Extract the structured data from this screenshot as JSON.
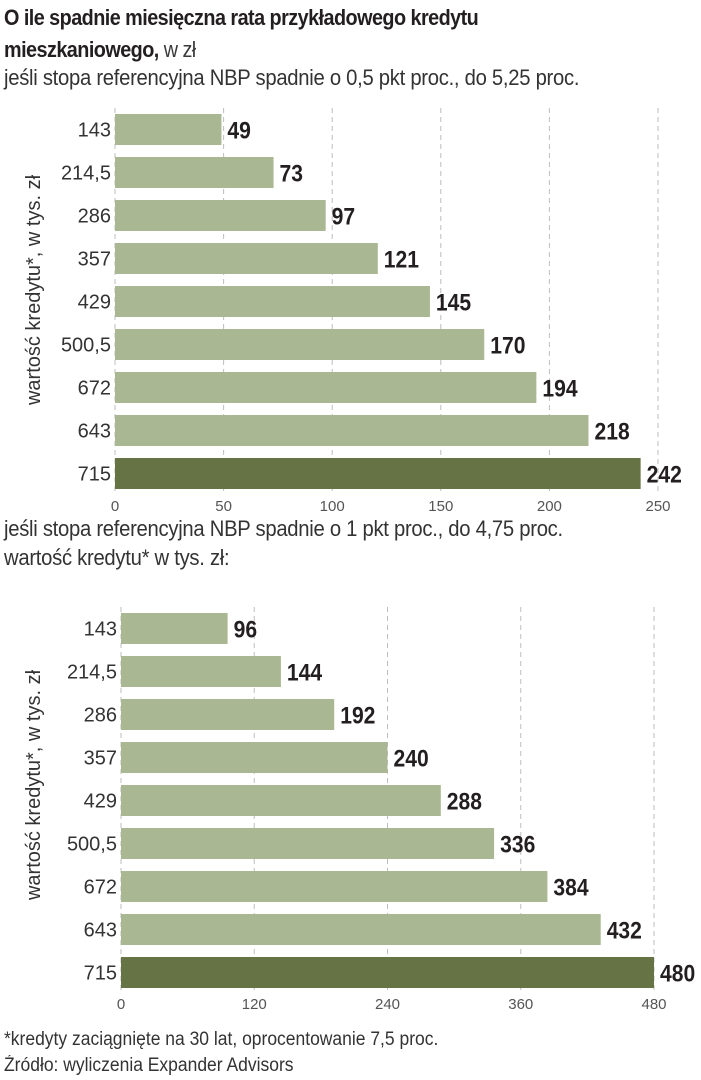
{
  "header": {
    "title_bold": "O ile spadnie miesięczna rata przykładowego kredytu mieszkaniowego,",
    "title_unit": " w zł"
  },
  "colors": {
    "bar_light": "#a9b792",
    "bar_dark": "#667445",
    "label": "#231f20",
    "grid": "#bdbdbd",
    "tick": "#555555"
  },
  "chart_data": [
    {
      "type": "bar",
      "orientation": "horizontal",
      "subtitle": "jeśli stopa referencyjna NBP spadnie o 0,5 pkt proc., do 5,25 proc.",
      "ylabel": "wartość kredytu*, w tys. zł",
      "xlabel": "",
      "categories": [
        "143",
        "214,5",
        "286",
        "357",
        "429",
        "500,5",
        "672",
        "643",
        "715"
      ],
      "values": [
        49,
        73,
        97,
        121,
        145,
        170,
        194,
        218,
        242
      ],
      "highlight_index": 8,
      "xlim": [
        0,
        250
      ],
      "xticks": [
        0,
        50,
        100,
        150,
        200,
        250
      ],
      "grid": true
    },
    {
      "type": "bar",
      "orientation": "horizontal",
      "subtitle": "jeśli stopa referencyjna NBP spadnie o 1 pkt proc., do 4,75 proc.",
      "subtitle2": "wartość kredytu* w tys. zł:",
      "ylabel": "wartość kredytu*, w tys. zł",
      "xlabel": "",
      "categories": [
        "143",
        "214,5",
        "286",
        "357",
        "429",
        "500,5",
        "672",
        "643",
        "715"
      ],
      "values": [
        96,
        144,
        192,
        240,
        288,
        336,
        384,
        432,
        480
      ],
      "highlight_index": 8,
      "xlim": [
        0,
        480
      ],
      "xticks": [
        0,
        120,
        240,
        360,
        480
      ],
      "grid": true
    }
  ],
  "footer": {
    "note": "*kredyty zaciągnięte na 30 lat, oprocentowanie 7,5 proc.",
    "source": "Źródło: wyliczenia Expander Advisors"
  }
}
